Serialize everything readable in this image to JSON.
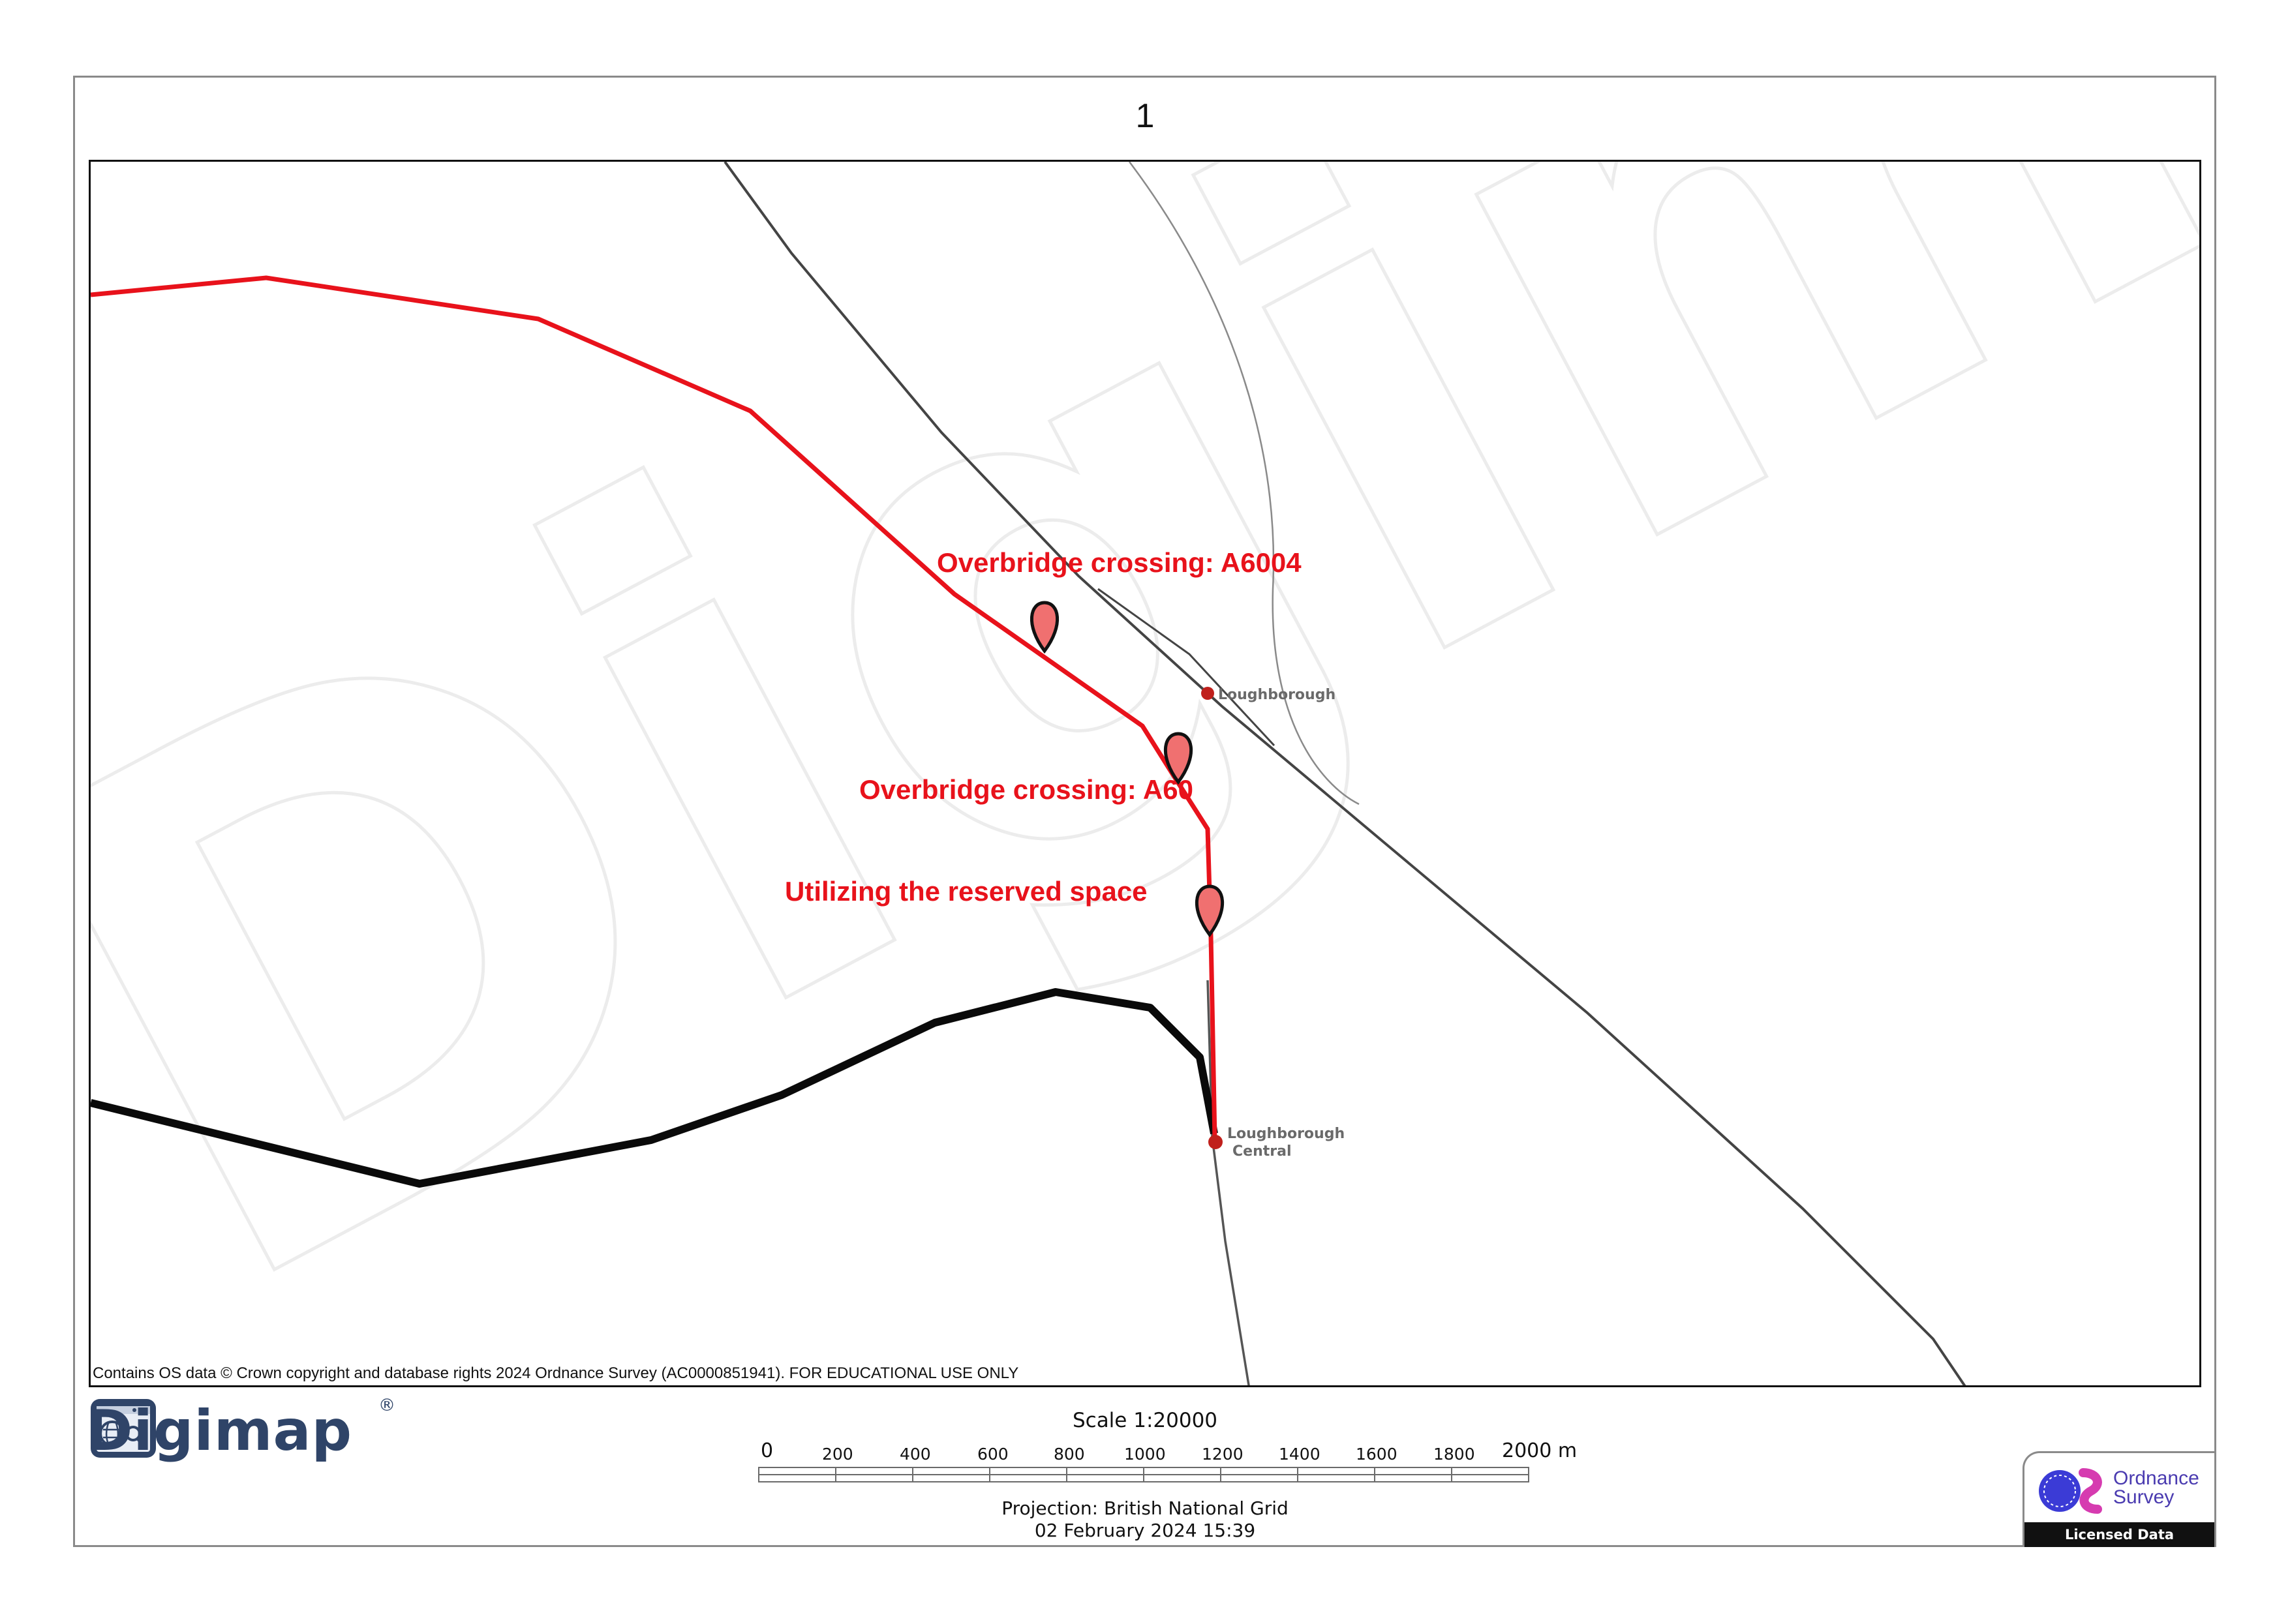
{
  "page": {
    "number": "1"
  },
  "map": {
    "copyright": "Contains OS data © Crown copyright and database rights 2024 Ordnance Survey (AC0000851941). FOR EDUCATIONAL USE ONLY",
    "watermark": "Digimap",
    "annotations": [
      {
        "text": "Overbridge crossing: A6004",
        "color": "#e8121b"
      },
      {
        "text": "Overbridge crossing: A60",
        "color": "#e8121b"
      },
      {
        "text": "Utilizing the reserved space",
        "color": "#e8121b"
      }
    ],
    "stations": [
      {
        "name": "Loughborough"
      },
      {
        "name": "Loughborough",
        "name2": "Central"
      }
    ],
    "colors": {
      "proposed_route": "#e8121b",
      "existing_route": "#0a0a0a",
      "railway": "#444444",
      "marker": "#f07070",
      "station": "#c0201c"
    }
  },
  "footer": {
    "brand": "Digimap",
    "brand_reg": "®",
    "scale_label": "Scale 1:20000",
    "scale_ticks": [
      "0",
      "200",
      "400",
      "600",
      "800",
      "1000",
      "1200",
      "1400",
      "1600",
      "1800",
      "2000 m"
    ],
    "projection": "Projection: British National Grid",
    "date": "02 February 2024 15:39",
    "os_name_line1": "Ordnance",
    "os_name_line2": "Survey",
    "os_badge": "Licensed Data"
  }
}
